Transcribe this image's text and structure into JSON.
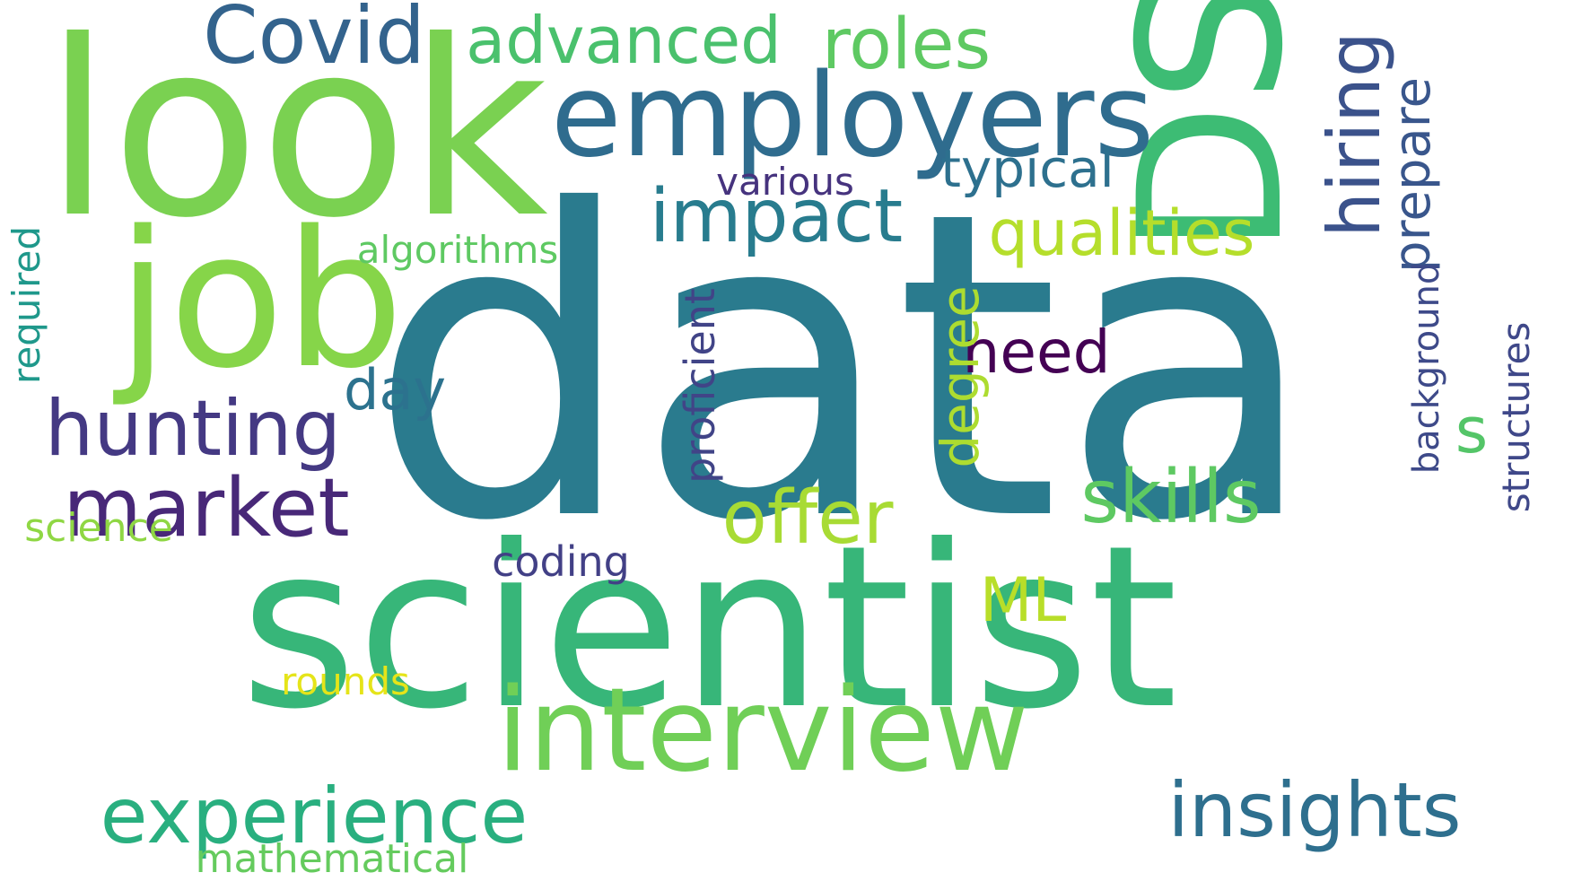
{
  "words": [
    {
      "text": "data",
      "color": "#2a7b8e",
      "vertical": false
    },
    {
      "text": "scientist",
      "color": "#37b679",
      "vertical": false
    },
    {
      "text": "look",
      "color": "#7ad151",
      "vertical": false
    },
    {
      "text": "DS",
      "color": "#3dbc74",
      "vertical": true
    },
    {
      "text": "job",
      "color": "#86d549",
      "vertical": false
    },
    {
      "text": "employers",
      "color": "#2f6c8e",
      "vertical": false
    },
    {
      "text": "interview",
      "color": "#70cf57",
      "vertical": false
    },
    {
      "text": "Covid",
      "color": "#33638d",
      "vertical": false
    },
    {
      "text": "roles",
      "color": "#5ec962",
      "vertical": false
    },
    {
      "text": "advanced",
      "color": "#4ac16d",
      "vertical": false
    },
    {
      "text": "hiring",
      "color": "#3b528b",
      "vertical": true
    },
    {
      "text": "prepare",
      "color": "#39568c",
      "vertical": true
    },
    {
      "text": "typical",
      "color": "#2d708e",
      "vertical": false
    },
    {
      "text": "various",
      "color": "#46337e",
      "vertical": false
    },
    {
      "text": "impact",
      "color": "#287c8e",
      "vertical": false
    },
    {
      "text": "qualities",
      "color": "#b5de2b",
      "vertical": false
    },
    {
      "text": "algorithms",
      "color": "#5ec962",
      "vertical": false
    },
    {
      "text": "required",
      "color": "#1f988b",
      "vertical": true
    },
    {
      "text": "hunting",
      "color": "#443983",
      "vertical": false
    },
    {
      "text": "day",
      "color": "#2c728e",
      "vertical": false
    },
    {
      "text": "need",
      "color": "#440154",
      "vertical": false
    },
    {
      "text": "degree",
      "color": "#addc30",
      "vertical": true
    },
    {
      "text": "proficient",
      "color": "#414487",
      "vertical": true
    },
    {
      "text": "background",
      "color": "#3e4a89",
      "vertical": true
    },
    {
      "text": "structures",
      "color": "#3f4889",
      "vertical": true
    },
    {
      "text": "s",
      "color": "#54c568",
      "vertical": false
    },
    {
      "text": "market",
      "color": "#482878",
      "vertical": false
    },
    {
      "text": "offer",
      "color": "#a8db34",
      "vertical": false
    },
    {
      "text": "skills",
      "color": "#5ec962",
      "vertical": false
    },
    {
      "text": "science",
      "color": "#8fd744",
      "vertical": false
    },
    {
      "text": "coding",
      "color": "#424086",
      "vertical": false
    },
    {
      "text": "ML",
      "color": "#b8de29",
      "vertical": false
    },
    {
      "text": "rounds",
      "color": "#e5e419",
      "vertical": false
    },
    {
      "text": "experience",
      "color": "#29af7f",
      "vertical": false
    },
    {
      "text": "insights",
      "color": "#2e6f8e",
      "vertical": false
    },
    {
      "text": "mathematical",
      "color": "#65cb5e",
      "vertical": false
    }
  ]
}
